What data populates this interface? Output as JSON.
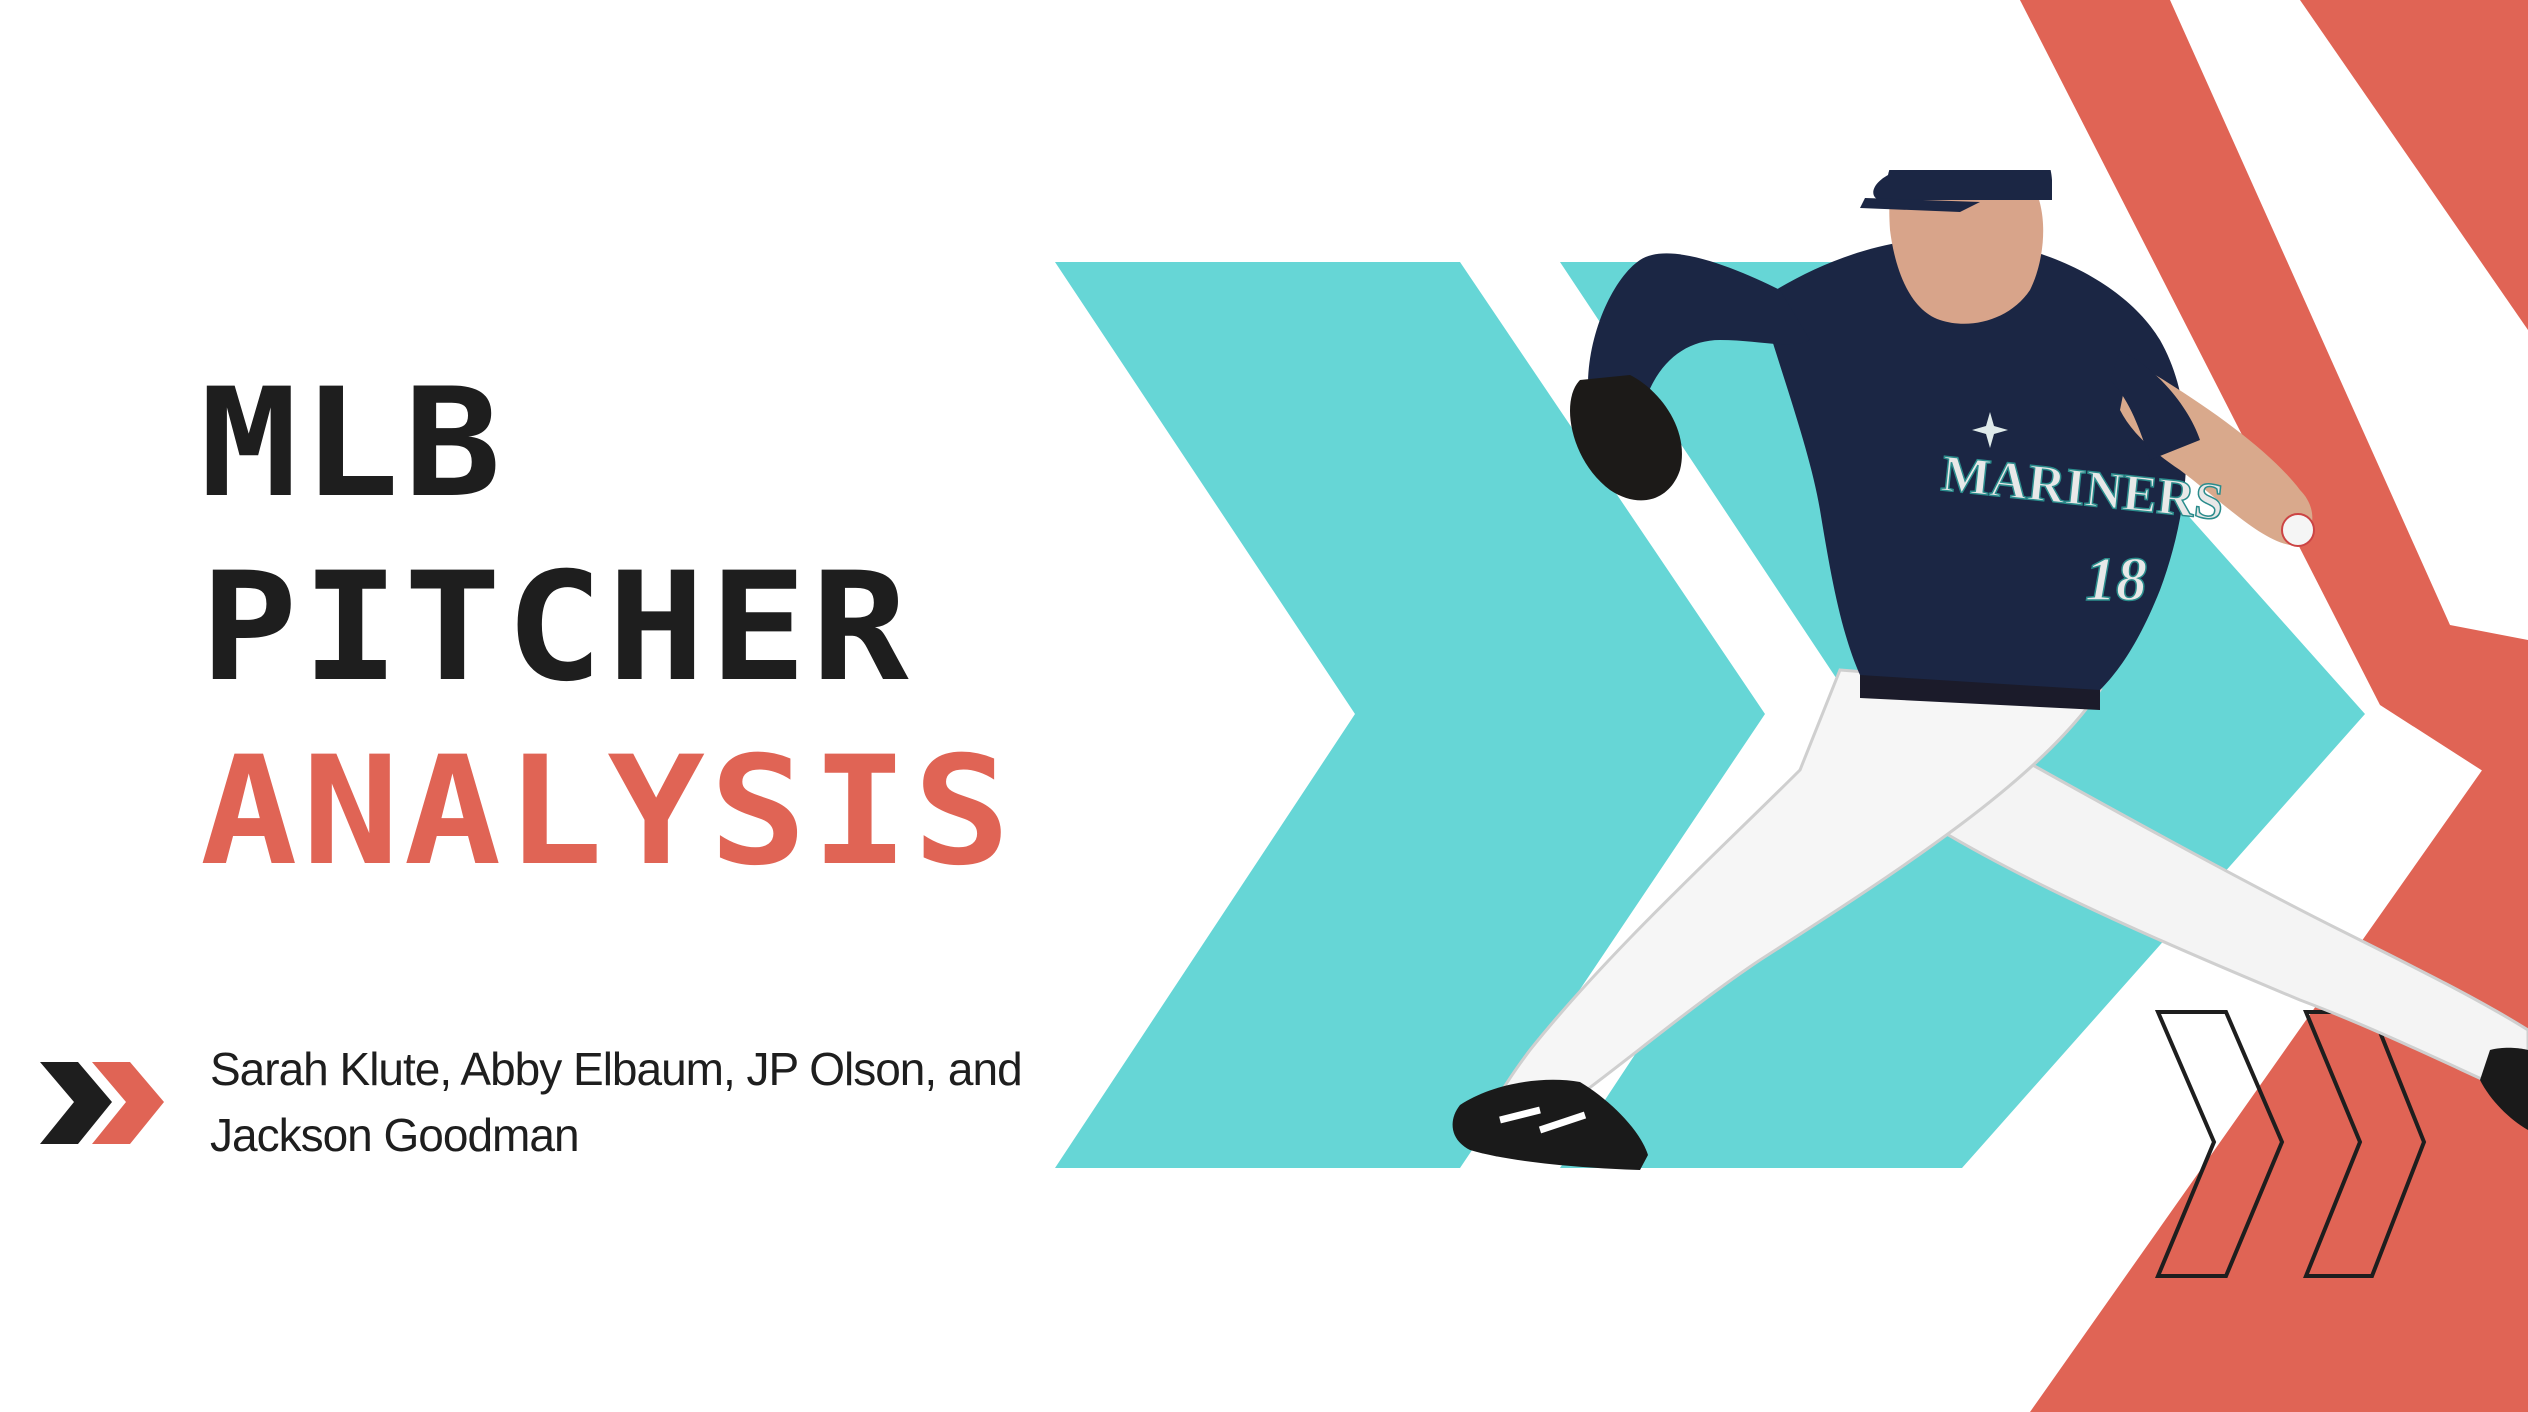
{
  "slide": {
    "title": {
      "line1": "MLB",
      "line2": "PITCHER",
      "line3": "ANALYSIS"
    },
    "authors": {
      "line1": "Sarah Klute, Abby Elbaum, JP Olson, and",
      "line2": "Jackson Goodman"
    },
    "jersey": {
      "team": "MARINERS",
      "number": "18"
    },
    "colors": {
      "coral": "#e06455",
      "teal": "#66d6d6",
      "dark": "#1e1e1e",
      "navy": "#1b2644",
      "background": "#ffffff"
    },
    "icons": [
      "double-chevron-icon",
      "outline-chevron-icon",
      "teal-chevron-shape",
      "coral-chevron-shape"
    ]
  }
}
